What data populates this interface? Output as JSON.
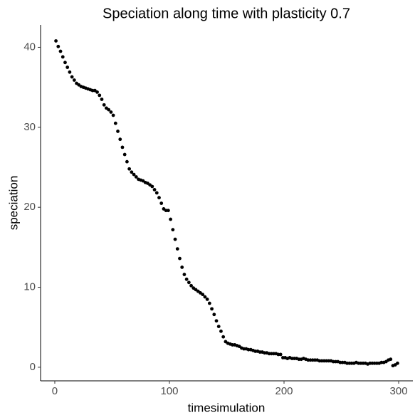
{
  "chart_data": {
    "type": "scatter",
    "title": "Speciation along time with plasticity 0.7",
    "x_label": "timesimulation",
    "y_label": "speciation",
    "color": "#000000",
    "x": [
      1,
      3,
      5,
      7,
      9,
      11,
      13,
      15,
      17,
      19,
      21,
      23,
      25,
      27,
      29,
      31,
      33,
      35,
      37,
      39,
      41,
      43,
      45,
      47,
      49,
      51,
      53,
      55,
      57,
      59,
      61,
      63,
      65,
      67,
      69,
      71,
      73,
      75,
      77,
      79,
      81,
      83,
      85,
      87,
      89,
      91,
      93,
      95,
      97,
      99,
      101,
      103,
      105,
      107,
      109,
      111,
      113,
      115,
      117,
      119,
      121,
      123,
      125,
      127,
      129,
      131,
      133,
      135,
      137,
      139,
      141,
      143,
      145,
      147,
      149,
      151,
      153,
      155,
      157,
      159,
      161,
      163,
      165,
      167,
      169,
      171,
      173,
      175,
      177,
      179,
      181,
      183,
      185,
      187,
      189,
      191,
      193,
      195,
      197,
      199,
      201,
      203,
      205,
      207,
      209,
      211,
      213,
      215,
      217,
      219,
      221,
      223,
      225,
      227,
      229,
      231,
      233,
      235,
      237,
      239,
      241,
      243,
      245,
      247,
      249,
      251,
      253,
      255,
      257,
      259,
      261,
      263,
      265,
      267,
      269,
      271,
      273,
      275,
      277,
      279,
      281,
      283,
      285,
      287,
      289,
      291,
      293,
      295,
      297,
      299
    ],
    "values": [
      40.8,
      40.1,
      39.5,
      38.8,
      38.1,
      37.5,
      36.9,
      36.3,
      35.9,
      35.5,
      35.3,
      35.1,
      35.0,
      34.9,
      34.8,
      34.7,
      34.6,
      34.6,
      34.4,
      34.0,
      33.5,
      32.8,
      32.4,
      32.2,
      31.9,
      31.5,
      30.5,
      29.5,
      28.5,
      27.5,
      26.6,
      25.7,
      24.8,
      24.4,
      24.1,
      23.8,
      23.5,
      23.4,
      23.3,
      23.1,
      23.0,
      22.8,
      22.6,
      22.2,
      21.8,
      21.2,
      20.5,
      19.8,
      19.6,
      19.6,
      18.5,
      17.2,
      16.0,
      14.8,
      13.6,
      12.5,
      11.6,
      11.0,
      10.6,
      10.2,
      9.9,
      9.7,
      9.5,
      9.3,
      9.1,
      8.8,
      8.5,
      8.0,
      7.3,
      6.6,
      5.8,
      5.1,
      4.5,
      3.8,
      3.2,
      3.0,
      2.9,
      2.8,
      2.8,
      2.7,
      2.6,
      2.4,
      2.3,
      2.3,
      2.2,
      2.2,
      2.1,
      2.0,
      2.0,
      1.9,
      1.9,
      1.8,
      1.8,
      1.7,
      1.7,
      1.7,
      1.7,
      1.6,
      1.6,
      1.2,
      1.2,
      1.1,
      1.2,
      1.1,
      1.1,
      1.1,
      1.0,
      1.0,
      1.1,
      1.0,
      0.9,
      0.9,
      0.9,
      0.9,
      0.9,
      0.8,
      0.8,
      0.8,
      0.8,
      0.8,
      0.8,
      0.7,
      0.7,
      0.7,
      0.6,
      0.6,
      0.6,
      0.5,
      0.5,
      0.5,
      0.5,
      0.6,
      0.5,
      0.5,
      0.5,
      0.5,
      0.4,
      0.5,
      0.5,
      0.5,
      0.5,
      0.5,
      0.6,
      0.6,
      0.7,
      0.9,
      1.0,
      0.2,
      0.3,
      0.5
    ],
    "xlim": [
      -12.4,
      312.4
    ],
    "xticks": [
      0,
      100,
      200,
      300
    ],
    "ylim": [
      -1.7,
      42.8
    ],
    "yticks": [
      0,
      10,
      20,
      30,
      40
    ]
  }
}
